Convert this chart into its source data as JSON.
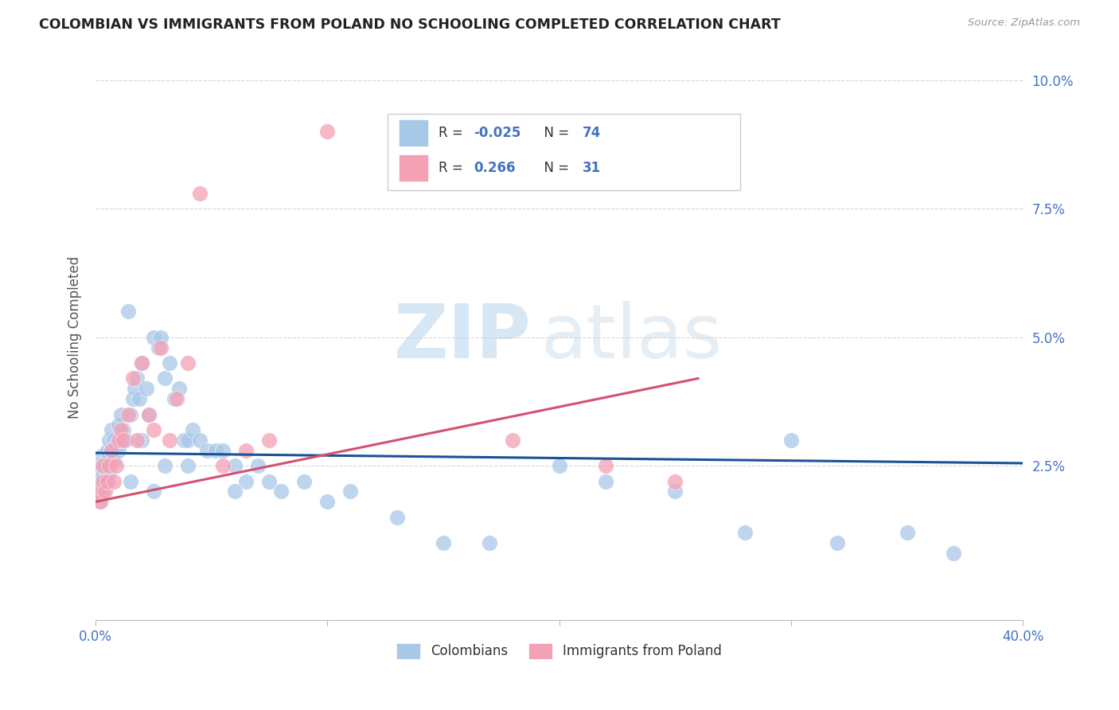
{
  "title": "COLOMBIAN VS IMMIGRANTS FROM POLAND NO SCHOOLING COMPLETED CORRELATION CHART",
  "source": "Source: ZipAtlas.com",
  "ylabel": "No Schooling Completed",
  "xlim": [
    0.0,
    0.4
  ],
  "ylim": [
    -0.005,
    0.105
  ],
  "r_colombian": -0.025,
  "n_colombian": 74,
  "r_poland": 0.266,
  "n_poland": 31,
  "colombian_color": "#a8c8e8",
  "poland_color": "#f4a0b5",
  "colombian_line_color": "#1a5296",
  "poland_line_color": "#d45070",
  "background_color": "#ffffff",
  "grid_color": "#cccccc",
  "watermark_zip": "ZIP",
  "watermark_atlas": "atlas",
  "watermark_color": "#cce0f0",
  "legend_label_colombian": "Colombians",
  "legend_label_poland": "Immigrants from Poland",
  "colombians_x": [
    0.001,
    0.001,
    0.002,
    0.002,
    0.003,
    0.003,
    0.003,
    0.004,
    0.004,
    0.005,
    0.005,
    0.005,
    0.006,
    0.006,
    0.006,
    0.007,
    0.007,
    0.008,
    0.008,
    0.009,
    0.01,
    0.01,
    0.011,
    0.011,
    0.012,
    0.013,
    0.014,
    0.015,
    0.016,
    0.017,
    0.018,
    0.019,
    0.02,
    0.022,
    0.023,
    0.025,
    0.027,
    0.028,
    0.03,
    0.032,
    0.034,
    0.036,
    0.038,
    0.04,
    0.042,
    0.045,
    0.048,
    0.052,
    0.055,
    0.06,
    0.065,
    0.07,
    0.075,
    0.08,
    0.09,
    0.1,
    0.11,
    0.13,
    0.15,
    0.17,
    0.2,
    0.22,
    0.25,
    0.28,
    0.3,
    0.32,
    0.35,
    0.37,
    0.02,
    0.03,
    0.015,
    0.025,
    0.04,
    0.06
  ],
  "colombians_y": [
    0.025,
    0.022,
    0.02,
    0.018,
    0.027,
    0.023,
    0.02,
    0.025,
    0.022,
    0.028,
    0.026,
    0.023,
    0.03,
    0.027,
    0.024,
    0.032,
    0.028,
    0.03,
    0.026,
    0.029,
    0.033,
    0.028,
    0.035,
    0.03,
    0.032,
    0.03,
    0.055,
    0.035,
    0.038,
    0.04,
    0.042,
    0.038,
    0.045,
    0.04,
    0.035,
    0.05,
    0.048,
    0.05,
    0.042,
    0.045,
    0.038,
    0.04,
    0.03,
    0.03,
    0.032,
    0.03,
    0.028,
    0.028,
    0.028,
    0.025,
    0.022,
    0.025,
    0.022,
    0.02,
    0.022,
    0.018,
    0.02,
    0.015,
    0.01,
    0.01,
    0.025,
    0.022,
    0.02,
    0.012,
    0.03,
    0.01,
    0.012,
    0.008,
    0.03,
    0.025,
    0.022,
    0.02,
    0.025,
    0.02
  ],
  "poland_x": [
    0.001,
    0.002,
    0.003,
    0.003,
    0.004,
    0.005,
    0.006,
    0.007,
    0.008,
    0.009,
    0.01,
    0.011,
    0.012,
    0.014,
    0.016,
    0.018,
    0.02,
    0.023,
    0.025,
    0.028,
    0.032,
    0.035,
    0.04,
    0.045,
    0.055,
    0.065,
    0.075,
    0.1,
    0.18,
    0.22,
    0.25
  ],
  "poland_y": [
    0.02,
    0.018,
    0.022,
    0.025,
    0.02,
    0.022,
    0.025,
    0.028,
    0.022,
    0.025,
    0.03,
    0.032,
    0.03,
    0.035,
    0.042,
    0.03,
    0.045,
    0.035,
    0.032,
    0.048,
    0.03,
    0.038,
    0.045,
    0.078,
    0.025,
    0.028,
    0.03,
    0.09,
    0.03,
    0.025,
    0.022
  ],
  "col_line_x": [
    0.0,
    0.4
  ],
  "col_line_y": [
    0.0275,
    0.0255
  ],
  "pol_line_x": [
    0.0,
    0.26
  ],
  "pol_line_y": [
    0.018,
    0.042
  ]
}
